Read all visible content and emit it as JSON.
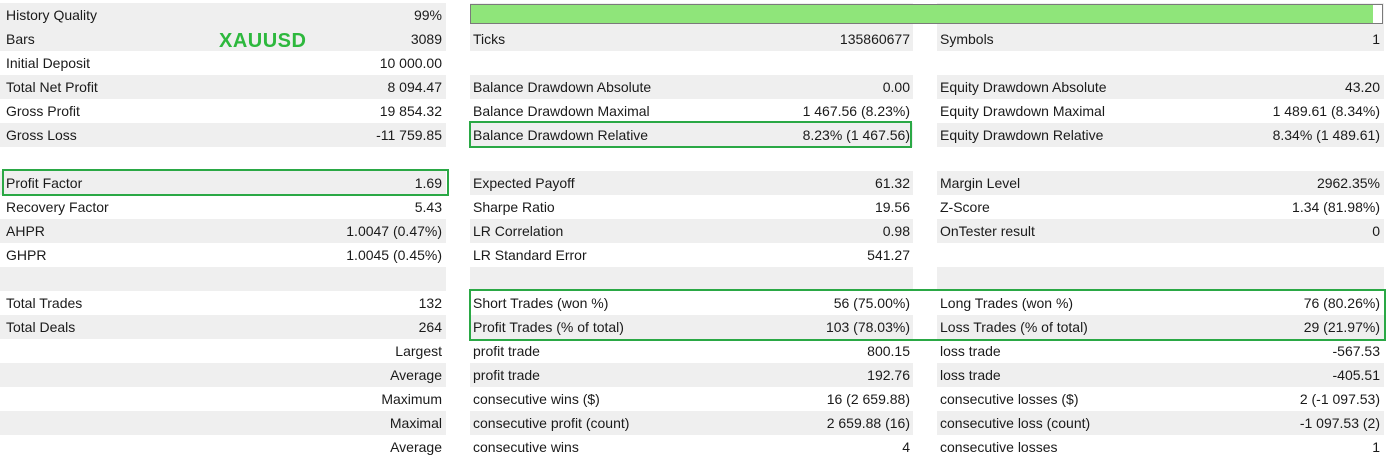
{
  "symbol_tag": "XAUUSD",
  "colors": {
    "highlight": "#2aa845",
    "quality_fill": "#8fe57a",
    "symbol_tag": "#2db83d"
  },
  "history_quality": {
    "label": "History Quality",
    "value": "99%",
    "fill_fraction": 0.99
  },
  "rows": [
    {
      "shade": true,
      "c1": "History Quality",
      "c2": "99%"
    },
    {
      "shade": true,
      "c1": "Bars",
      "c2": "3089",
      "c3": "Ticks",
      "c4": "135860677",
      "c5": "Symbols",
      "c6": "1"
    },
    {
      "shade": false,
      "c1": "Initial Deposit",
      "c2": "10 000.00"
    },
    {
      "shade": true,
      "c1": "Total Net Profit",
      "c2": "8 094.47",
      "c3": "Balance Drawdown Absolute",
      "c4": "0.00",
      "c5": "Equity Drawdown Absolute",
      "c6": "43.20"
    },
    {
      "shade": false,
      "c1": "Gross Profit",
      "c2": "19 854.32",
      "c3": "Balance Drawdown Maximal",
      "c4": "1 467.56 (8.23%)",
      "c5": "Equity Drawdown Maximal",
      "c6": "1 489.61 (8.34%)"
    },
    {
      "shade": true,
      "c1": "Gross Loss",
      "c2": "-11 759.85",
      "c3": "Balance Drawdown Relative",
      "c4": "8.23% (1 467.56)",
      "c5": "Equity Drawdown Relative",
      "c6": "8.34% (1 489.61)"
    },
    {
      "shade": false
    },
    {
      "shade": true,
      "c1": "Profit Factor",
      "c2": "1.69",
      "c3": "Expected Payoff",
      "c4": "61.32",
      "c5": "Margin Level",
      "c6": "2962.35%"
    },
    {
      "shade": false,
      "c1": "Recovery Factor",
      "c2": "5.43",
      "c3": "Sharpe Ratio",
      "c4": "19.56",
      "c5": "Z-Score",
      "c6": "1.34 (81.98%)"
    },
    {
      "shade": true,
      "c1": "AHPR",
      "c2": "1.0047 (0.47%)",
      "c3": "LR Correlation",
      "c4": "0.98",
      "c5": "OnTester result",
      "c6": "0"
    },
    {
      "shade": false,
      "c1": "GHPR",
      "c2": "1.0045 (0.45%)",
      "c3": "LR Standard Error",
      "c4": "541.27"
    },
    {
      "shade": true
    },
    {
      "shade": false,
      "c1": "Total Trades",
      "c2": "132",
      "c3": "Short Trades (won %)",
      "c4": "56 (75.00%)",
      "c5": "Long Trades (won %)",
      "c6": "76 (80.26%)"
    },
    {
      "shade": true,
      "c1": "Total Deals",
      "c2": "264",
      "c3": "Profit Trades (% of total)",
      "c4": "103 (78.03%)",
      "c5": "Loss Trades (% of total)",
      "c6": "29 (21.97%)"
    },
    {
      "shade": false,
      "c2": "Largest",
      "c3": "profit trade",
      "c4": "800.15",
      "c5": "loss trade",
      "c6": "-567.53"
    },
    {
      "shade": true,
      "c2": "Average",
      "c3": "profit trade",
      "c4": "192.76",
      "c5": "loss trade",
      "c6": "-405.51"
    },
    {
      "shade": false,
      "c2": "Maximum",
      "c3": "consecutive wins ($)",
      "c4": "16 (2 659.88)",
      "c5": "consecutive losses ($)",
      "c6": "2 (-1 097.53)"
    },
    {
      "shade": true,
      "c2": "Maximal",
      "c3": "consecutive profit (count)",
      "c4": "2 659.88 (16)",
      "c5": "consecutive loss (count)",
      "c6": "-1 097.53 (2)"
    },
    {
      "shade": false,
      "c2": "Average",
      "c3": "consecutive wins",
      "c4": "4",
      "c5": "consecutive losses",
      "c6": "1"
    }
  ]
}
